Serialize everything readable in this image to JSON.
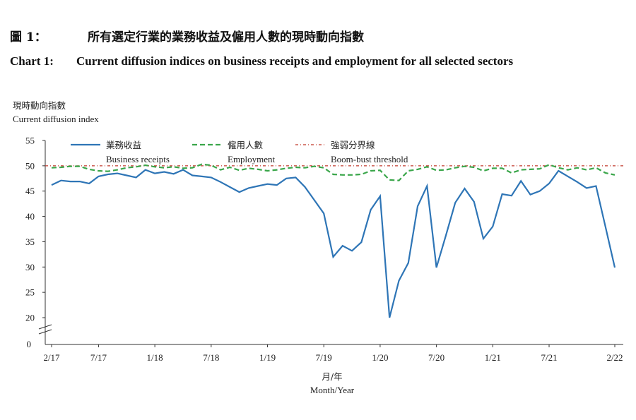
{
  "header": {
    "title_zh_num": "圖 1：",
    "title_zh": "所有選定行業的業務收益及僱用人數的現時動向指數",
    "title_en_num": "Chart 1:",
    "title_en": "Current diffusion indices on business receipts and employment for all selected sectors"
  },
  "chart_data": {
    "type": "line",
    "ylabel_zh": "現時動向指數",
    "ylabel_en": "Current diffusion index",
    "xlabel_zh": "月/年",
    "xlabel_en": "Month/Year",
    "ylim": [
      20,
      55
    ],
    "y_ticks": [
      "55",
      "50",
      "45",
      "40",
      "35",
      "30",
      "25",
      "20"
    ],
    "y_zero_label": "0",
    "x_tick_labels": [
      "2/17",
      "7/17",
      "1/18",
      "7/18",
      "1/19",
      "7/19",
      "1/20",
      "7/20",
      "1/21",
      "7/21",
      "2/22"
    ],
    "x_tick_index": [
      0,
      5,
      11,
      17,
      23,
      29,
      35,
      41,
      47,
      53,
      60
    ],
    "x_start": "2017-02",
    "x_end": "2022-02",
    "legend_placement": "top",
    "threshold": {
      "name_zh": "強弱分界線",
      "name_en": "Boom-bust threshold",
      "value": 50,
      "color": "#c0392b"
    },
    "series": [
      {
        "name_zh": "業務收益",
        "name_en": "Business receipts",
        "color": "#2e75b6",
        "style": "solid",
        "values": [
          46.2,
          47.1,
          46.9,
          46.9,
          46.5,
          47.9,
          48.3,
          48.5,
          48.1,
          47.7,
          49.2,
          48.5,
          48.8,
          48.4,
          49.2,
          48.1,
          47.9,
          47.7,
          46.8,
          45.8,
          44.8,
          45.6,
          46.0,
          46.4,
          46.2,
          47.5,
          47.7,
          45.8,
          43.2,
          40.6,
          32.0,
          34.2,
          33.2,
          34.9,
          41.3,
          44.0,
          20.0,
          27.3,
          30.8,
          42.0,
          46.0,
          29.9,
          36.2,
          42.7,
          45.5,
          42.9,
          35.6,
          38.0,
          44.4,
          44.1,
          47.0,
          44.3,
          45.0,
          46.5,
          49.0,
          47.9,
          46.8,
          45.6,
          46.0,
          38.0,
          29.9
        ]
      },
      {
        "name_zh": "僱用人數",
        "name_en": "Employment",
        "color": "#3aa64a",
        "style": "dashed",
        "values": [
          49.6,
          49.7,
          49.9,
          49.9,
          49.3,
          49.0,
          48.9,
          49.2,
          49.6,
          49.8,
          50.1,
          49.8,
          49.6,
          49.8,
          49.5,
          49.6,
          50.3,
          50.1,
          49.2,
          49.7,
          49.1,
          49.5,
          49.3,
          49.0,
          49.2,
          49.5,
          49.7,
          49.6,
          49.9,
          49.6,
          48.3,
          48.2,
          48.2,
          48.3,
          49.0,
          49.1,
          47.2,
          47.1,
          49.0,
          49.3,
          49.8,
          49.1,
          49.2,
          49.6,
          49.9,
          49.7,
          49.0,
          49.5,
          49.5,
          48.6,
          49.2,
          49.3,
          49.4,
          50.2,
          49.6,
          49.2,
          49.6,
          49.2,
          49.6,
          48.6,
          48.2
        ]
      }
    ]
  }
}
